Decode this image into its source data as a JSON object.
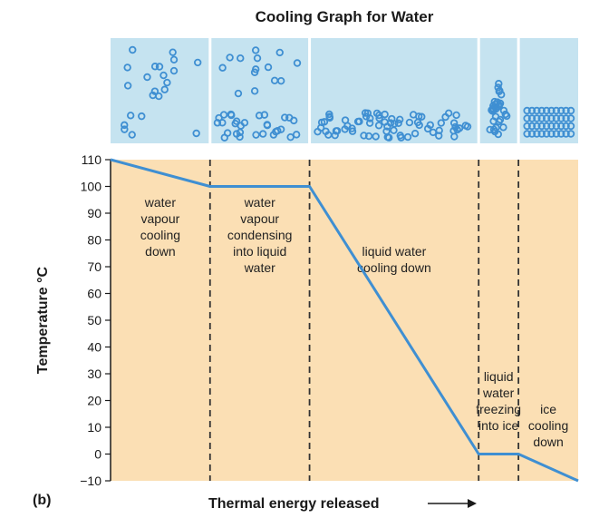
{
  "chart_data": {
    "type": "line",
    "title": "Cooling Graph for Water",
    "xlabel": "Thermal energy released",
    "ylabel": "Temperature °C",
    "figure_label": "(b)",
    "ylim": [
      -10,
      110
    ],
    "yticks": [
      110,
      100,
      90,
      80,
      70,
      60,
      50,
      40,
      30,
      20,
      10,
      0,
      -10
    ],
    "grid": false,
    "series": [
      {
        "x": [
          0,
          1,
          2,
          3.7,
          4.1,
          4.7
        ],
        "y": [
          110,
          100,
          100,
          0,
          0,
          -10
        ]
      }
    ],
    "phase_boundaries_x": [
      1,
      2,
      3.7,
      4.1
    ],
    "xlim": [
      0,
      4.7
    ],
    "regions": [
      {
        "lines": [
          "water",
          "vapour",
          "cooling",
          "down"
        ]
      },
      {
        "lines": [
          "water",
          "vapour",
          "condensing",
          "into liquid",
          "water"
        ]
      },
      {
        "lines": [
          "liquid water",
          "cooling down"
        ]
      },
      {
        "lines": [
          "liquid",
          "water",
          "freezing",
          "into ice"
        ]
      },
      {
        "lines": [
          "ice",
          "cooling",
          "down"
        ]
      }
    ],
    "colors": {
      "plot_background": "#fbdfb4",
      "particle_panel": "#c5e3f0",
      "line": "#3f8fd2",
      "molecule": "#3f8fd2",
      "dashed": "#333333"
    }
  }
}
